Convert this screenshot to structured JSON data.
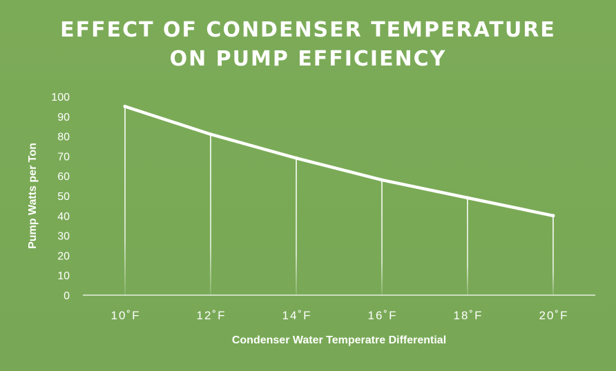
{
  "chart_data": {
    "type": "line",
    "title_lines": [
      "EFFECT OF CONDENSER TEMPERATURE",
      "ON PUMP EFFICIENCY"
    ],
    "xlabel": "Condenser Water Temperatre Differential",
    "ylabel": "Pump Watts per Ton",
    "categories": [
      "10˚F",
      "12˚F",
      "14˚F",
      "16˚F",
      "18˚F",
      "20˚F"
    ],
    "series": [
      {
        "values": [
          95,
          81,
          69,
          58,
          49,
          40
        ]
      }
    ],
    "ylim": [
      0,
      100
    ],
    "yticks": [
      0,
      10,
      20,
      30,
      40,
      50,
      60,
      70,
      80,
      90,
      100
    ],
    "drop_lines": true,
    "grid": false,
    "colors": {
      "background": "#79a957",
      "line": "#ffffff",
      "text": "#ffffff"
    }
  }
}
